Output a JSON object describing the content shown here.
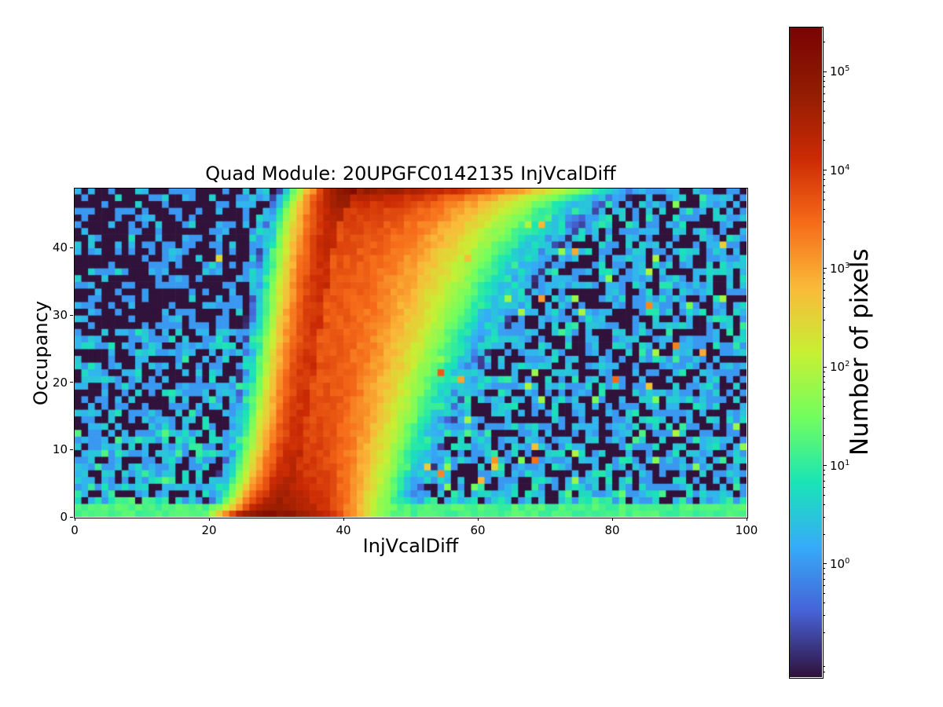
{
  "page": {
    "background": "#ffffff",
    "spine_color": "#000000",
    "text_color": "#000000"
  },
  "chart_data": {
    "type": "heatmap",
    "title": "Quad Module: 20UPGFC0142135 InjVcalDiff",
    "xlabel": "InjVcalDiff",
    "ylabel": "Occupancy",
    "colorbar_label": "Number of pixels",
    "x_range": [
      0,
      100
    ],
    "y_range": [
      0,
      48.8
    ],
    "x_ticks": [
      "0",
      "20",
      "40",
      "60",
      "80",
      "100"
    ],
    "y_ticks": [
      "0",
      "10",
      "20",
      "30",
      "40"
    ],
    "grid": {
      "nx": 100,
      "ny": 49
    },
    "legend": "none",
    "grid_lines": false,
    "color_scale": {
      "type": "log",
      "min_exp": -1.15,
      "max_exp": 5.45,
      "tick_base": "10",
      "tick_exponents": [
        0,
        1,
        2,
        3,
        4,
        5
      ]
    },
    "colormap": {
      "name": "turbo",
      "stops": [
        [
          0.0,
          "#30123b"
        ],
        [
          0.1,
          "#4662d7"
        ],
        [
          0.2,
          "#36abf9"
        ],
        [
          0.3,
          "#1ae4b6"
        ],
        [
          0.4,
          "#72fe5e"
        ],
        [
          0.5,
          "#c8ef34"
        ],
        [
          0.6,
          "#faba39"
        ],
        [
          0.7,
          "#f66b19"
        ],
        [
          0.8,
          "#cb2a04"
        ],
        [
          0.9,
          "#921c02"
        ],
        [
          1.0,
          "#7a0403"
        ]
      ]
    },
    "model": {
      "description": "S-curve threshold-scan 2D histogram: dense red band of pixel S-curves rising from (x~30,occ~0) to (x~43,occ~48), saturated count blobs at bottom-left of band and top of band, log-color background noise mottle with bright specks right of the band",
      "seed": 1337,
      "n_inj": 49,
      "thr_mean": 36,
      "noise_sigma": 2.8,
      "thr_sigma_lo": 2.3,
      "thr_sigma_hi_base": 4.0,
      "thr_sigma_hi_slope": 4.5,
      "amplitude": 500000,
      "count_cap": 300000,
      "bottom_row_floor_min": 10,
      "bottom_row_floor_span": 14,
      "row2_mu": 5.0,
      "row3_mu": 3.5,
      "left_region_max_x": 26,
      "bg_left_split_low": 13,
      "bg_left_split_high": 28,
      "bg_left_top_mu": 1.0,
      "bg_left_mid_mu": 1.9,
      "bg_left_bottom_mu": 3.2,
      "bg_right_mu": 2.2,
      "speck_region_min_x": 47,
      "speck_p": 0.013,
      "speck_log_min": 2.4,
      "speck_log_span": 1.3,
      "speck_minor_p": 0.02,
      "speck_minor_min": 25,
      "speck_minor_span": 70,
      "speck_left_p": 0.002
    }
  }
}
